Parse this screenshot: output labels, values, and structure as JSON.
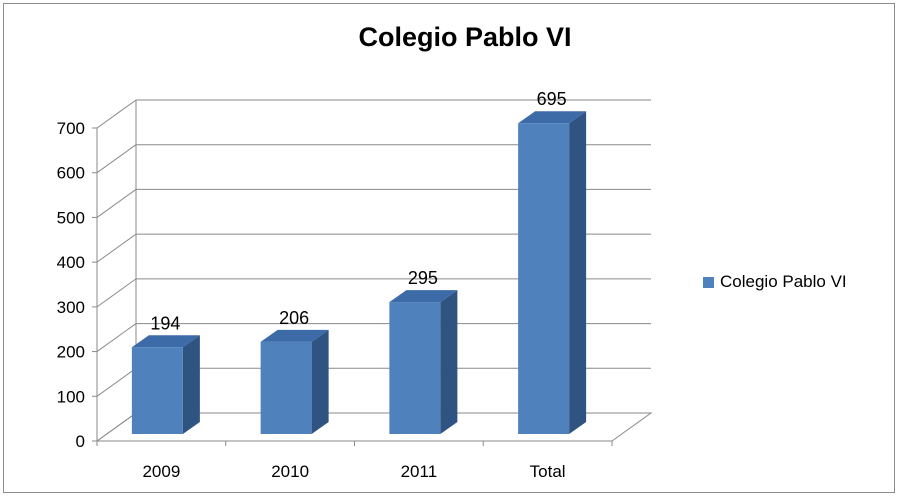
{
  "chart_data": {
    "type": "bar",
    "title": "Colegio Pablo VI",
    "categories": [
      "2009",
      "2010",
      "2011",
      "Total"
    ],
    "series": [
      {
        "name": "Colegio Pablo VI",
        "values": [
          194,
          206,
          295,
          695
        ],
        "color": "#4f81bd"
      }
    ],
    "data_labels": [
      "194",
      "206",
      "295",
      "695"
    ],
    "y_ticks": [
      "0",
      "100",
      "200",
      "300",
      "400",
      "500",
      "600",
      "700"
    ],
    "ylim": [
      0,
      700
    ],
    "grid": true,
    "legend_position": "right",
    "style": "3d-column"
  }
}
